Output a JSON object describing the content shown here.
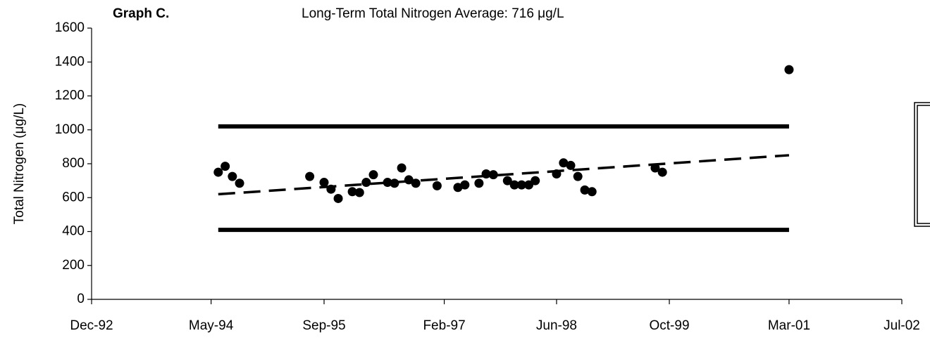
{
  "chart_data": {
    "type": "scatter",
    "label": "Graph C.",
    "title": "Long-Term Total Nitrogen Average:  716 μg/L",
    "y_label": "Total Nitrogen (μg/L)",
    "xlim": [
      "1992-12",
      "2002-07"
    ],
    "xticks": [
      {
        "value": "1992-12",
        "label": "Dec-92"
      },
      {
        "value": "1994-05",
        "label": "May-94"
      },
      {
        "value": "1995-09",
        "label": "Sep-95"
      },
      {
        "value": "1997-02",
        "label": "Feb-97"
      },
      {
        "value": "1998-06",
        "label": "Jun-98"
      },
      {
        "value": "1999-10",
        "label": "Oct-99"
      },
      {
        "value": "2001-03",
        "label": "Mar-01"
      },
      {
        "value": "2002-07",
        "label": "Jul-02"
      }
    ],
    "ylim": [
      0,
      1600
    ],
    "yticks": [
      0,
      200,
      400,
      600,
      800,
      1000,
      1200,
      1400,
      1600
    ],
    "series": [
      {
        "kind": "points",
        "color": "#000000",
        "x": [
          "1994-06",
          "1994-07",
          "1994-08",
          "1994-09",
          "1995-07",
          "1995-09",
          "1995-10",
          "1995-11",
          "1996-01",
          "1996-02",
          "1996-03",
          "1996-04",
          "1996-06",
          "1996-07",
          "1996-08",
          "1996-09",
          "1996-10",
          "1997-01",
          "1997-04",
          "1997-05",
          "1997-07",
          "1997-08",
          "1997-09",
          "1997-11",
          "1997-12",
          "1998-01",
          "1998-02",
          "1998-03",
          "1998-06",
          "1998-07",
          "1998-08",
          "1998-09",
          "1998-10",
          "1998-11",
          "1999-08",
          "1999-09",
          "2001-03"
        ],
        "values": [
          750,
          785,
          725,
          685,
          725,
          690,
          650,
          595,
          635,
          630,
          690,
          735,
          690,
          685,
          775,
          705,
          685,
          670,
          660,
          675,
          685,
          740,
          735,
          700,
          675,
          675,
          675,
          700,
          740,
          805,
          790,
          725,
          645,
          635,
          775,
          750,
          1355
        ]
      },
      {
        "kind": "solid",
        "color": "#000000",
        "x": [
          "1994-06",
          "2001-03"
        ],
        "values": [
          1020,
          1020
        ]
      },
      {
        "kind": "solid",
        "color": "#000000",
        "x": [
          "1994-06",
          "2001-03"
        ],
        "values": [
          410,
          410
        ]
      },
      {
        "kind": "dashed",
        "color": "#000000",
        "x": [
          "1994-06",
          "2001-03"
        ],
        "values": [
          620,
          850
        ]
      }
    ]
  }
}
